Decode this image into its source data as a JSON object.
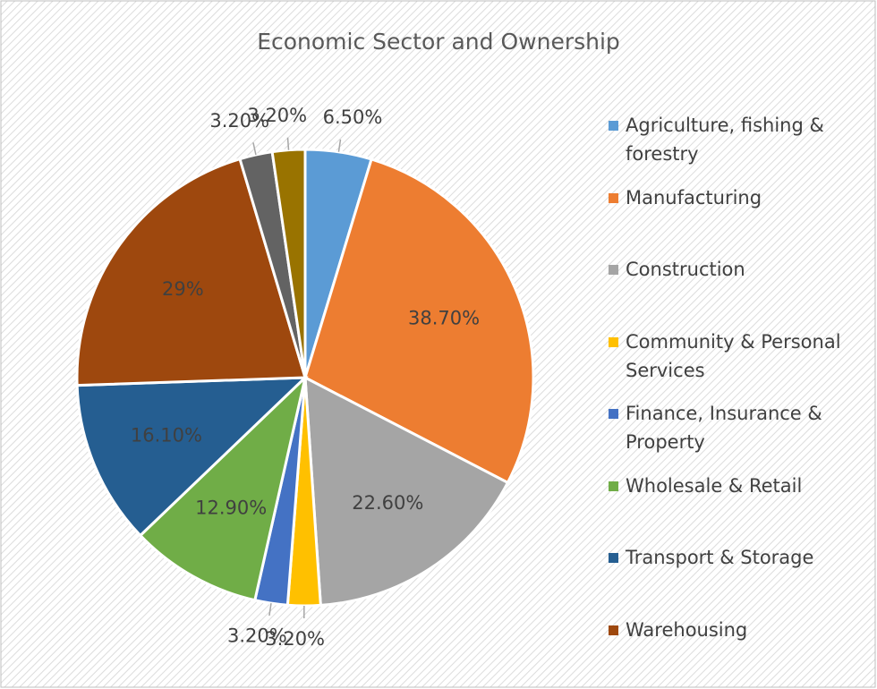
{
  "chart_data": {
    "type": "pie",
    "title": "Economic Sector and Ownership",
    "categories": [
      "Agriculture, fishing & forestry",
      "Manufacturing",
      "Construction",
      "Community & Personal Services",
      "Finance, Insurance & Property",
      "Wholesale & Retail",
      "Transport & Storage",
      "Warehousing",
      null,
      null
    ],
    "values": [
      6.5,
      38.7,
      22.6,
      3.2,
      3.2,
      12.9,
      16.1,
      29,
      3.2,
      3.2
    ],
    "value_labels": [
      "6.50%",
      "38.70%",
      "22.60%",
      "3.20%",
      "3.20%",
      "12.90%",
      "16.10%",
      "29%",
      "3.20%",
      "3.20%"
    ],
    "colors": [
      "#5b9bd5",
      "#ed7d31",
      "#a5a5a5",
      "#ffc000",
      "#4472c4",
      "#70ad47",
      "#255e91",
      "#9e480e",
      "#636363",
      "#997300"
    ],
    "legend": "right"
  }
}
